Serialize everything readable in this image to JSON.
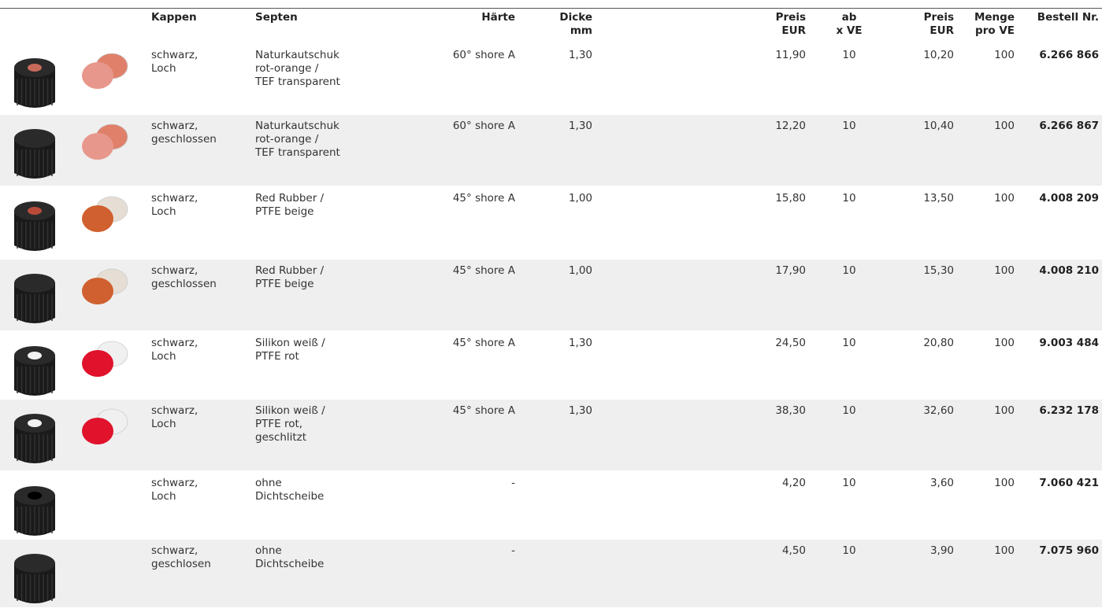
{
  "table": {
    "header": [
      "Kappen",
      "Septen",
      "Härte",
      "Dicke\nmm",
      "Preis\nEUR",
      "ab\nx VE",
      "Preis\nEUR",
      "Menge\npro VE",
      "Bestell Nr."
    ],
    "rows": [
      [
        "schwarz,\nLoch",
        "Naturkautschuk\nrot-orange /\nTEF transparent",
        "60° shore A",
        "1,30",
        "11,90",
        "10",
        "10,20",
        "100",
        "6.266 866"
      ],
      [
        "schwarz,\ngeschlossen",
        "Naturkautschuk\nrot-orange /\nTEF transparent",
        "60° shore A",
        "1,30",
        "12,20",
        "10",
        "10,40",
        "100",
        "6.266 867"
      ],
      [
        "schwarz,\nLoch",
        "Red Rubber /\nPTFE beige",
        "45° shore A",
        "1,00",
        "15,80",
        "10",
        "13,50",
        "100",
        "4.008 209"
      ],
      [
        "schwarz,\ngeschlossen",
        "Red Rubber /\nPTFE beige",
        "45° shore A",
        "1,00",
        "17,90",
        "10",
        "15,30",
        "100",
        "4.008 210"
      ],
      [
        "schwarz,\nLoch",
        "Silikon weiß /\nPTFE rot",
        "45° shore A",
        "1,30",
        "24,50",
        "10",
        "20,80",
        "100",
        "9.003 484"
      ],
      [
        "schwarz,\nLoch",
        "Silikon weiß /\nPTFE rot,\ngeschlitzt",
        "45° shore A",
        "1,30",
        "38,30",
        "10",
        "32,60",
        "100",
        "6.232 178"
      ],
      [
        "schwarz,\nLoch",
        "ohne\nDichtscheibe",
        "-",
        null,
        "4,20",
        "10",
        "3,60",
        "100",
        "7.060 421"
      ],
      [
        "schwarz,\ngeschlosen",
        "ohne\nDichtscheibe",
        "-",
        null,
        "4,50",
        "10",
        "3,90",
        "100",
        "7.075 960"
      ]
    ]
  }
}
